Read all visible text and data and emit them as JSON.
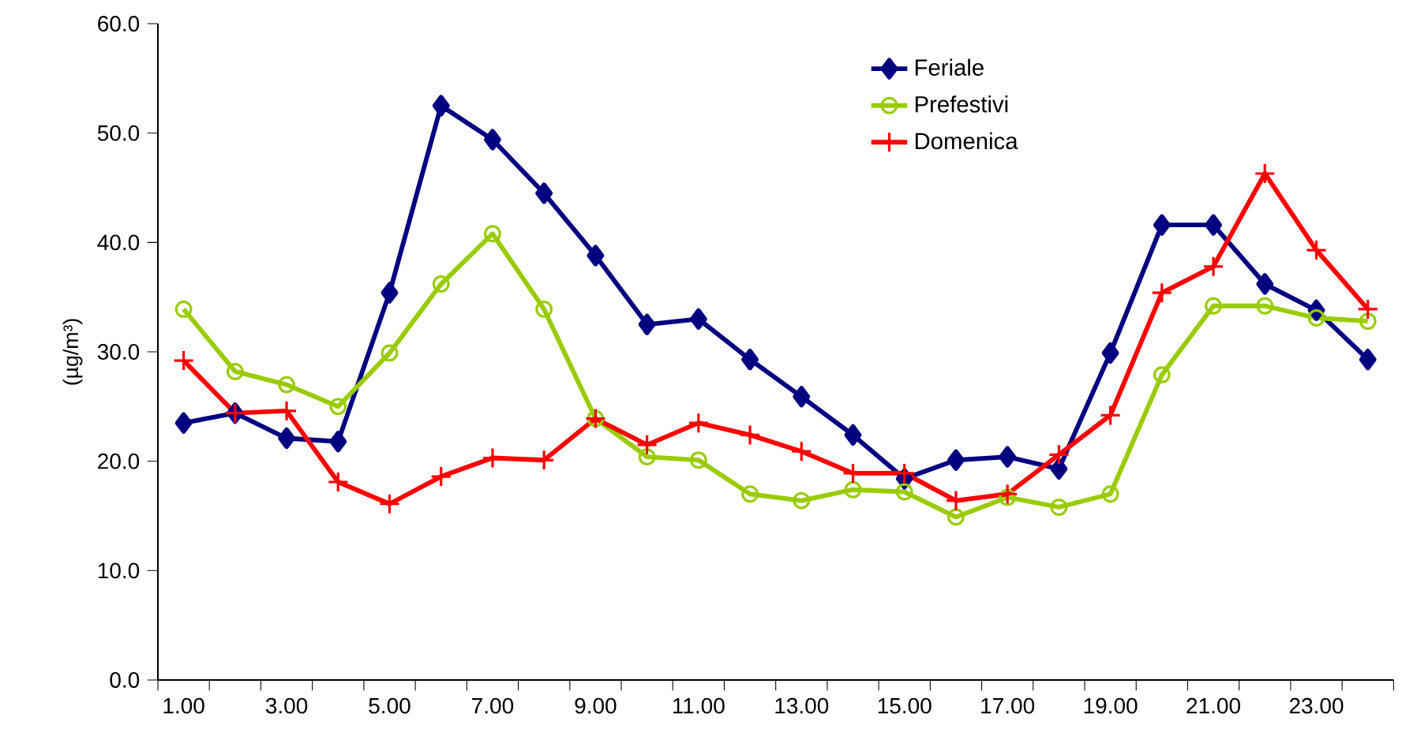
{
  "chart_data": {
    "type": "line",
    "ylabel": "(µg/m³)",
    "categories": [
      "1.00",
      null,
      "3.00",
      null,
      "5.00",
      null,
      "7.00",
      null,
      "9.00",
      null,
      "11.00",
      null,
      "13.00",
      null,
      "15.00",
      null,
      "17.00",
      null,
      "19.00",
      null,
      "21.00",
      null,
      "23.00",
      null
    ],
    "series": [
      {
        "name": "Feriale",
        "color": "#000080",
        "marker": "diamond",
        "values": [
          23.5,
          24.4,
          22.1,
          21.8,
          35.4,
          52.5,
          49.4,
          44.5,
          38.8,
          32.5,
          33.0,
          29.3,
          25.9,
          22.4,
          18.4,
          20.1,
          20.4,
          19.3,
          29.9,
          41.6,
          41.6,
          36.2,
          33.8,
          29.3
        ]
      },
      {
        "name": "Prefestivi",
        "color": "#99cc00",
        "marker": "circle",
        "values": [
          33.9,
          28.2,
          27.0,
          25.0,
          29.9,
          36.2,
          40.8,
          33.9,
          23.9,
          20.4,
          20.1,
          17.0,
          16.4,
          17.4,
          17.2,
          14.9,
          16.7,
          15.8,
          17.0,
          27.9,
          34.2,
          34.2,
          33.1,
          32.8
        ]
      },
      {
        "name": "Domenica",
        "color": "#ff0000",
        "marker": "cross",
        "values": [
          29.2,
          24.4,
          24.6,
          18.1,
          16.1,
          18.6,
          20.3,
          20.1,
          23.9,
          21.5,
          23.5,
          22.4,
          20.9,
          18.9,
          18.9,
          16.4,
          17.0,
          20.6,
          24.2,
          35.4,
          37.8,
          46.3,
          39.3,
          33.9
        ]
      }
    ],
    "ylim": [
      0,
      60
    ],
    "yticks": [
      {
        "value": 0,
        "label": "0.0"
      },
      {
        "value": 10,
        "label": "10.0"
      },
      {
        "value": 20,
        "label": "20.0"
      },
      {
        "value": 30,
        "label": "30.0"
      },
      {
        "value": 40,
        "label": "40.0"
      },
      {
        "value": 50,
        "label": "50.0"
      },
      {
        "value": 60,
        "label": "60.0"
      }
    ],
    "legend": "top",
    "grid": false,
    "line_style": "solid"
  }
}
